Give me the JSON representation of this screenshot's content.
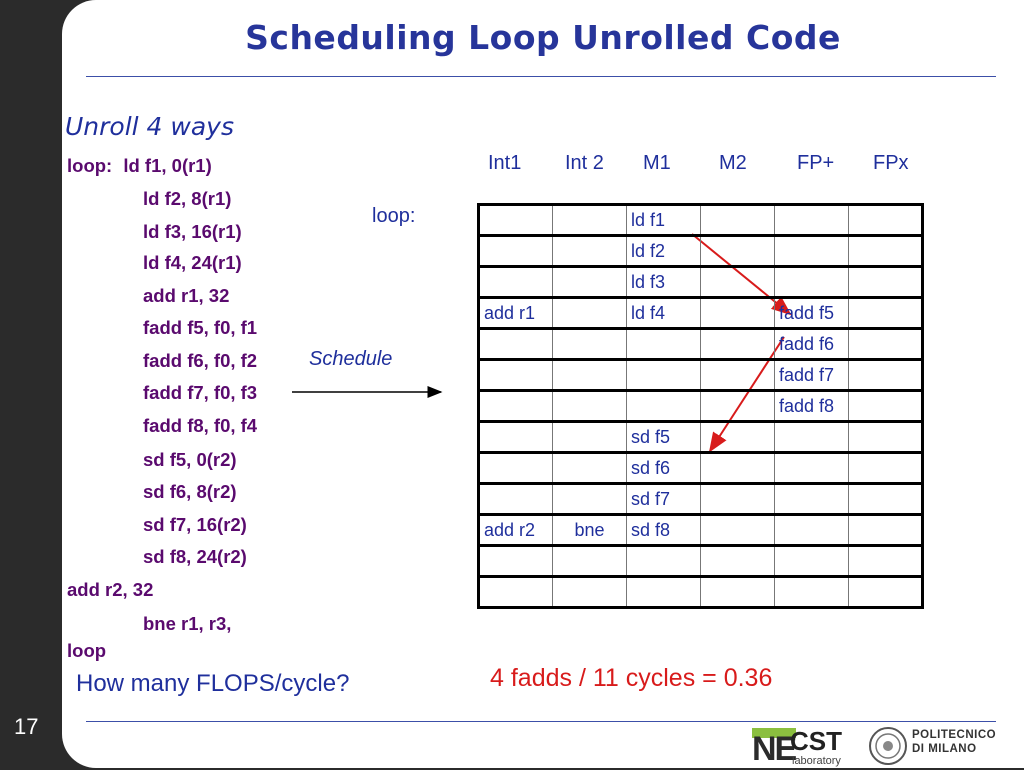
{
  "slide": {
    "title": "Scheduling Loop Unrolled Code",
    "subtitle": "Unroll 4 ways",
    "page_number": "17"
  },
  "code": {
    "line0_label": "loop:",
    "line0_instr": "ld f1, 0(r1)",
    "lines": [
      "ld f2, 8(r1)",
      "ld f3, 16(r1)",
      "ld f4, 24(r1)",
      "add r1, 32",
      "fadd f5, f0, f1",
      "fadd f6, f0, f2",
      "fadd f7, f0, f3",
      "fadd f8, f0, f4",
      "sd f5, 0(r2)",
      "sd f6, 8(r2)",
      "sd f7, 16(r2)",
      "sd f8, 24(r2)"
    ],
    "add_r2": "add r2, 32",
    "bne": "bne r1, r3,",
    "loop_word": "loop"
  },
  "schedule_label": "Schedule",
  "loop_label": "loop:",
  "table": {
    "headers": [
      "Int1",
      "Int 2",
      "M1",
      "M2",
      "FP+",
      "FPx"
    ],
    "rows": [
      [
        "",
        "",
        "ld f1",
        "",
        "",
        ""
      ],
      [
        "",
        "",
        "ld f2",
        "",
        "",
        ""
      ],
      [
        "",
        "",
        "ld f3",
        "",
        "",
        ""
      ],
      [
        "add r1",
        "",
        "ld f4",
        "",
        "fadd f5",
        ""
      ],
      [
        "",
        "",
        "",
        "",
        "fadd f6",
        ""
      ],
      [
        "",
        "",
        "",
        "",
        "fadd f7",
        ""
      ],
      [
        "",
        "",
        "",
        "",
        "fadd f8",
        ""
      ],
      [
        "",
        "",
        "sd f5",
        "",
        "",
        ""
      ],
      [
        "",
        "",
        "sd f6",
        "",
        "",
        ""
      ],
      [
        "",
        "",
        "sd f7",
        "",
        "",
        ""
      ],
      [
        "add r2",
        "bne",
        "sd f8",
        "",
        "",
        ""
      ],
      [
        "",
        "",
        "",
        "",
        "",
        ""
      ],
      [
        "",
        "",
        "",
        "",
        "",
        ""
      ]
    ]
  },
  "question": "How many FLOPS/cycle?",
  "answer": "4 fadds / 11 cycles = 0.36",
  "logos": {
    "necst_ne": "NE",
    "necst_cst": "CST",
    "necst_lab": "laboratory",
    "polimi_line1": "POLITECNICO",
    "polimi_line2": "DI MILANO"
  },
  "colors": {
    "title": "#27359a",
    "code": "#5a0a6e",
    "text_blue": "#1f2f9c",
    "arrow_red": "#d81b1b",
    "background": "#2b2b2b"
  }
}
